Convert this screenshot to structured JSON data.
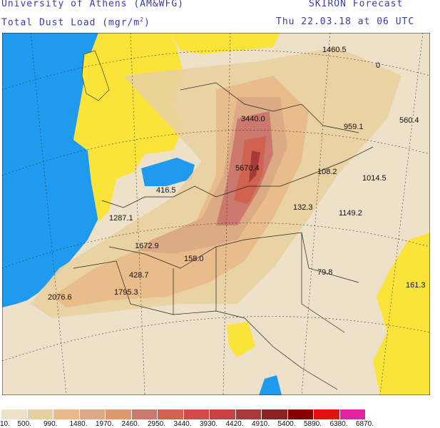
{
  "header": {
    "institution": "University of Athens (AM&WFG)",
    "product": "SKIRON Forecast",
    "variable": "Total Dust Load (mgr/m",
    "variable_superscript": "2",
    "variable_close": ")",
    "valid_time": "Thu 22.03.18 at 06 UTC"
  },
  "map": {
    "ocean_color": "#1e9bef",
    "no_dust_land_color": "#fbe43a",
    "labels": [
      "1460.5",
      "0",
      "3440.0",
      "959.1",
      "560.4",
      "5670.4",
      "108.2",
      "1014.5",
      "416.5",
      "132.3",
      "1149.2",
      "1287.1",
      "1672.9",
      "158.0",
      "428.7",
      "79.8",
      "2076.6",
      "1795.3",
      "161.3"
    ]
  },
  "legend": {
    "colors": [
      "#ede1c9",
      "#e8d09e",
      "#e9b98a",
      "#dcab86",
      "#e0996c",
      "#ca796c",
      "#d0624f",
      "#d24a4a",
      "#c64242",
      "#a73939",
      "#8c2222",
      "#840000",
      "#e3120f",
      "#e224a4"
    ],
    "ticks": [
      "10.",
      "500.",
      "990.",
      "1480.",
      "1970.",
      "2460.",
      "2950.",
      "3440.",
      "3930.",
      "4420.",
      "4910.",
      "5400.",
      "5890.",
      "6380.",
      "6870."
    ]
  }
}
